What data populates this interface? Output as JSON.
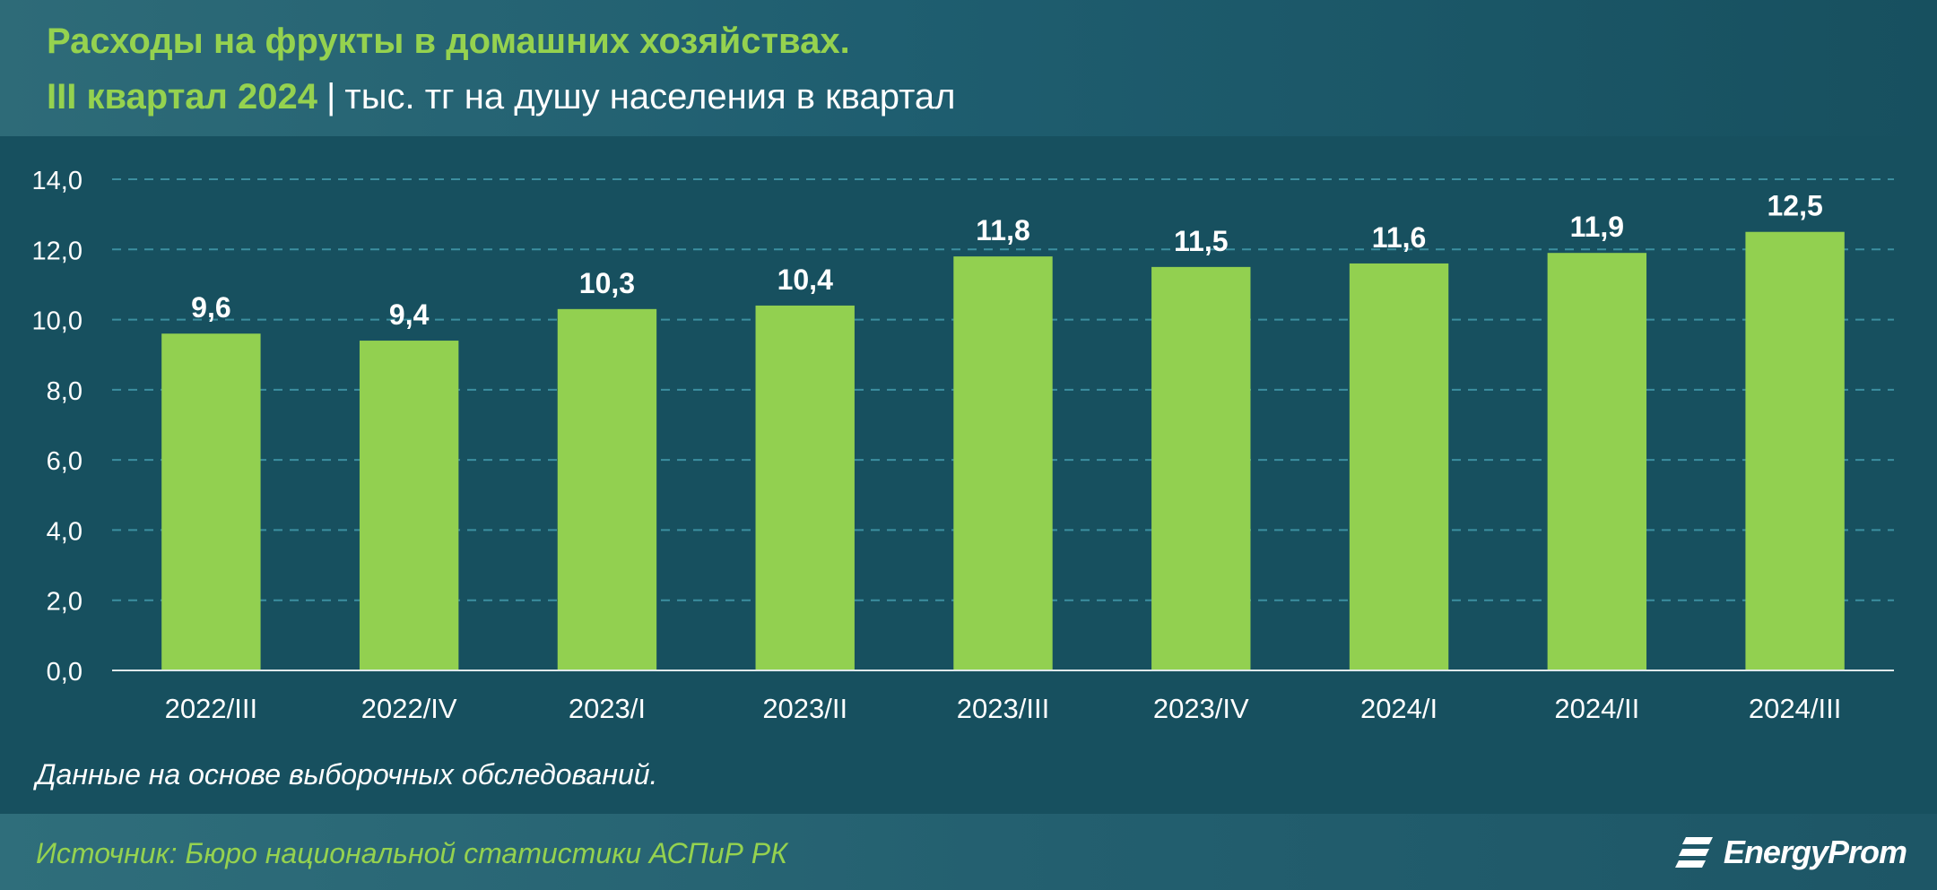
{
  "header": {
    "title_line1": "Расходы на фрукты в домашних хозяйствах.",
    "period": "III квартал 2024",
    "separator": "|",
    "unit": "тыс. тг на душу населения в квартал"
  },
  "note": "Данные на основе выборочных обследований.",
  "footer": {
    "source": "Источник: Бюро национальной статистики АСПиР РК",
    "logo_text": "EnergyProm"
  },
  "colors": {
    "bar": "#92d050",
    "panel": "#17505f",
    "header": "#2e6b78",
    "accent_text": "#95d24f",
    "grid": "#3c8fa0"
  },
  "chart_data": {
    "type": "bar",
    "categories": [
      "2022/III",
      "2022/IV",
      "2023/I",
      "2023/II",
      "2023/III",
      "2023/IV",
      "2024/I",
      "2024/II",
      "2024/III"
    ],
    "values": [
      9.6,
      9.4,
      10.3,
      10.4,
      11.8,
      11.5,
      11.6,
      11.9,
      12.5
    ],
    "value_labels": [
      "9,6",
      "9,4",
      "10,3",
      "10,4",
      "11,8",
      "11,5",
      "11,6",
      "11,9",
      "12,5"
    ],
    "ylim": [
      0,
      14
    ],
    "yticks": [
      0,
      2,
      4,
      6,
      8,
      10,
      12,
      14
    ],
    "ytick_labels": [
      "0,0",
      "2,0",
      "4,0",
      "6,0",
      "8,0",
      "10,0",
      "12,0",
      "14,0"
    ],
    "grid": true,
    "legend": false
  }
}
